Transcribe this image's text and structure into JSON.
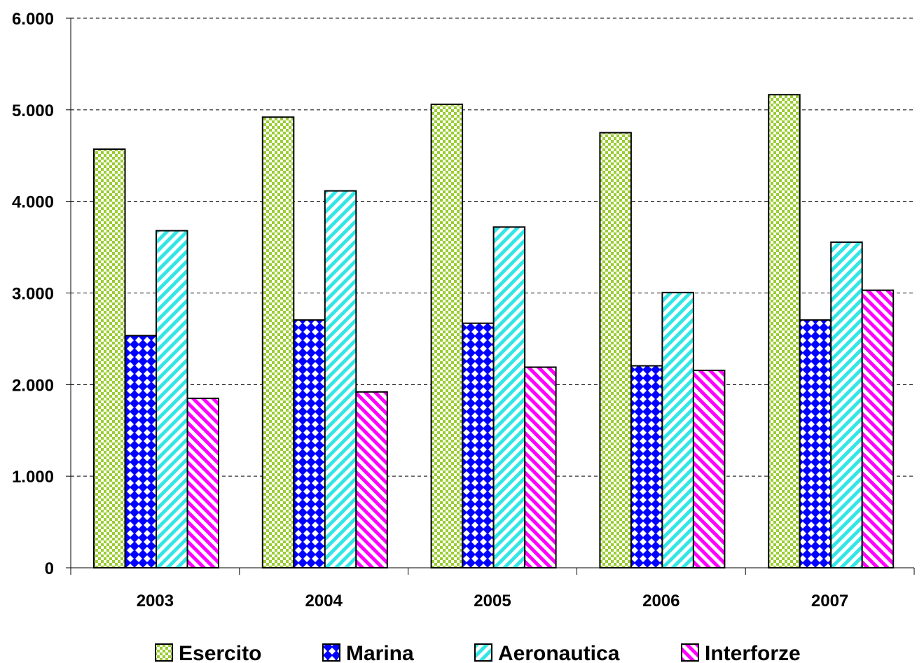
{
  "chart_data": {
    "type": "bar",
    "categories": [
      "2003",
      "2004",
      "2005",
      "2006",
      "2007"
    ],
    "series": [
      {
        "name": "Esercito",
        "values": [
          4570,
          4920,
          5060,
          4750,
          5165
        ]
      },
      {
        "name": "Marina",
        "values": [
          2535,
          2705,
          2670,
          2205,
          2705
        ]
      },
      {
        "name": "Aeronautica",
        "values": [
          3680,
          4115,
          3720,
          3005,
          3555
        ]
      },
      {
        "name": "Interforze",
        "values": [
          1850,
          1920,
          2190,
          2155,
          3030
        ]
      }
    ],
    "yticks": [
      "0",
      "1.000",
      "2.000",
      "3.000",
      "4.000",
      "5.000",
      "6.000"
    ],
    "ylim": [
      0,
      6000
    ],
    "grid": "dashed horizontal",
    "legend_position": "bottom",
    "colors": {
      "Esercito": "#9acd32",
      "Marina": "#0000ff",
      "Aeronautica": "#33e6e6",
      "Interforze": "#ff00ff"
    }
  }
}
